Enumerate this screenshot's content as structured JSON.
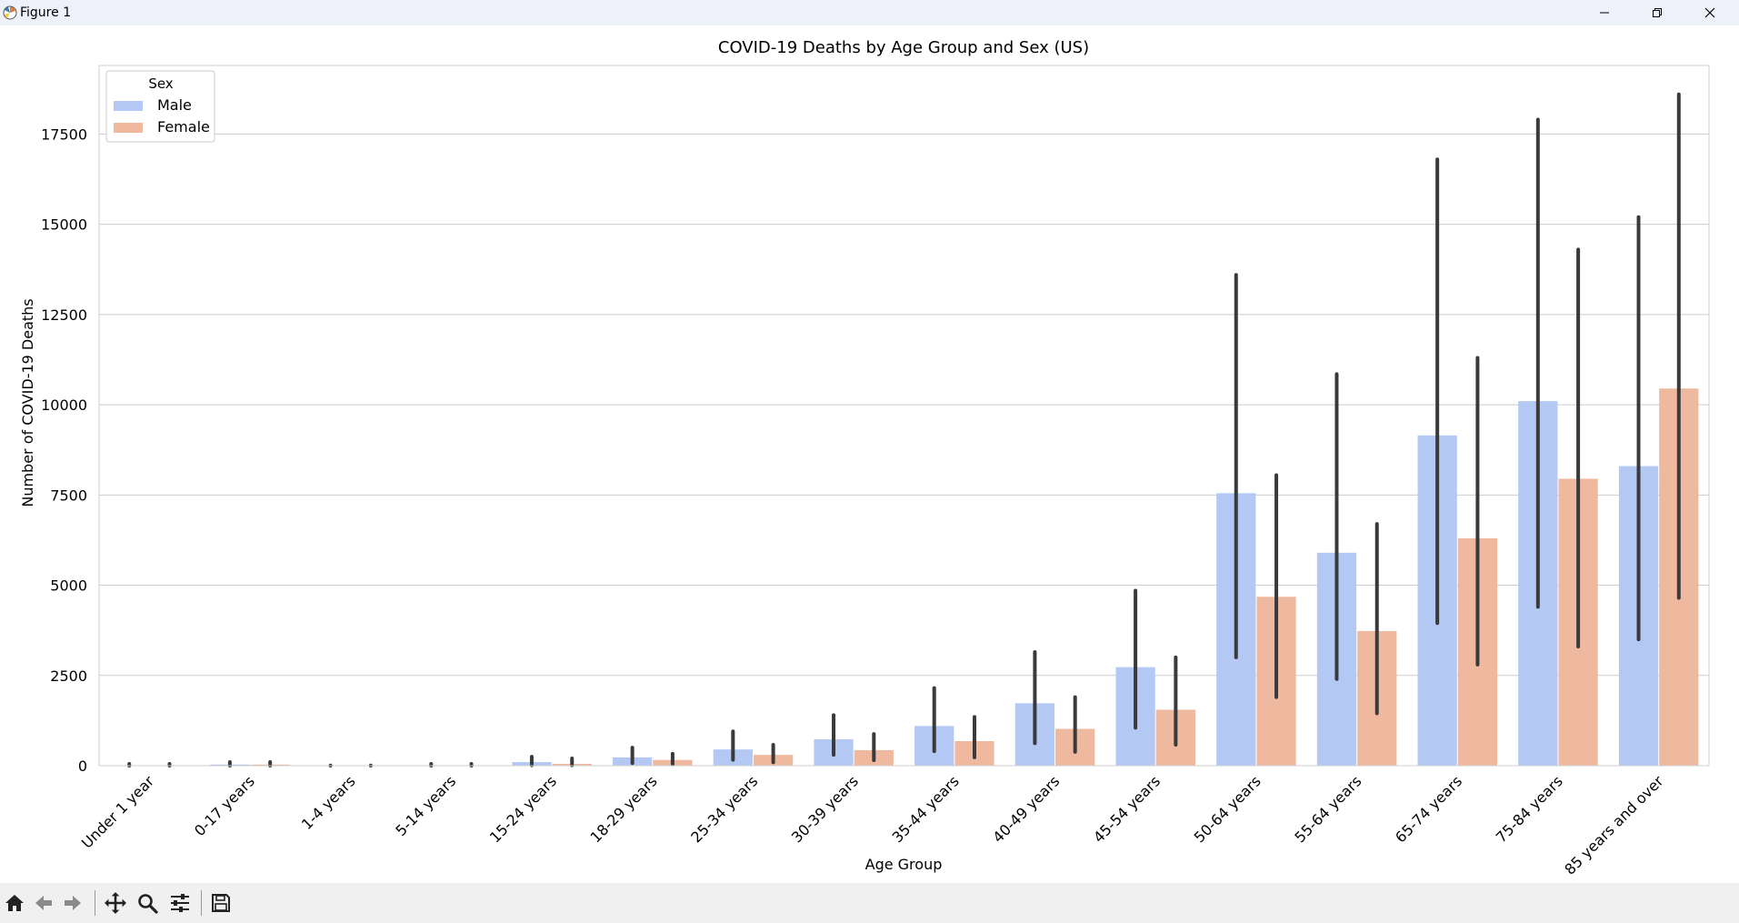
{
  "window": {
    "title": "Figure 1",
    "minimize_icon": "minimize-icon",
    "restore_icon": "restore-icon",
    "close_icon": "close-icon"
  },
  "toolbar": {
    "items": [
      "home-icon",
      "back-arrow-icon",
      "forward-arrow-icon",
      "pan-icon",
      "zoom-icon",
      "configure-subplots-icon",
      "save-icon"
    ]
  },
  "colors": {
    "male": "#b3c9f4",
    "female": "#efb9a0",
    "error_bar": "#3a3a3a",
    "grid": "#cccccc"
  },
  "chart_data": {
    "type": "bar",
    "title": "COVID-19 Deaths by Age Group and Sex (US)",
    "xlabel": "Age Group",
    "ylabel": "Number of COVID-19 Deaths",
    "ylim": [
      0,
      19400
    ],
    "yticks": [
      0,
      2500,
      5000,
      7500,
      10000,
      12500,
      15000,
      17500
    ],
    "grid": "horizontal",
    "legend": {
      "title": "Sex",
      "position": "top-left"
    },
    "categories": [
      "Under 1 year",
      "0-17 years",
      "1-4 years",
      "5-14 years",
      "15-24 years",
      "18-29 years",
      "25-34 years",
      "30-39 years",
      "35-44 years",
      "40-49 years",
      "45-54 years",
      "50-64 years",
      "55-64 years",
      "65-74 years",
      "75-84 years",
      "85 years and over"
    ],
    "series": [
      {
        "name": "Male",
        "values": [
          10,
          30,
          5,
          10,
          100,
          230,
          450,
          730,
          1100,
          1730,
          2730,
          7550,
          5900,
          9150,
          10100,
          8300
        ],
        "error_low": [
          0,
          0,
          0,
          0,
          10,
          70,
          160,
          300,
          400,
          620,
          1050,
          3000,
          2400,
          3950,
          4400,
          3500
        ],
        "error_high": [
          50,
          100,
          5,
          50,
          250,
          500,
          950,
          1400,
          2150,
          3150,
          4850,
          13600,
          10850,
          16800,
          17900,
          15200
        ]
      },
      {
        "name": "Female",
        "values": [
          10,
          30,
          5,
          10,
          50,
          160,
          300,
          430,
          680,
          1020,
          1550,
          4680,
          3730,
          6300,
          7950,
          10450
        ],
        "error_low": [
          0,
          0,
          0,
          0,
          10,
          30,
          90,
          150,
          230,
          380,
          580,
          1900,
          1450,
          2800,
          3300,
          4650
        ],
        "error_high": [
          50,
          100,
          5,
          50,
          200,
          330,
          580,
          880,
          1350,
          1900,
          3000,
          8050,
          6700,
          11300,
          14300,
          18600
        ]
      }
    ]
  }
}
